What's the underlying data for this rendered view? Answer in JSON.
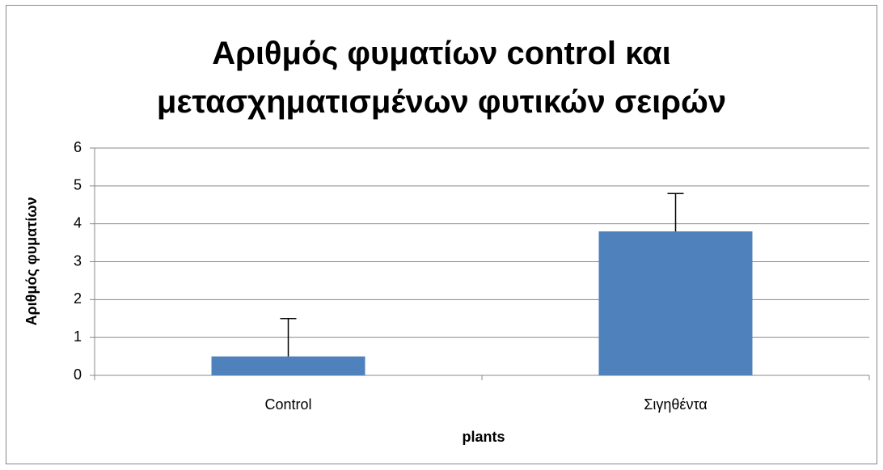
{
  "chart_data": {
    "type": "bar",
    "title": "Αριθμός φυματίων control και μετασχηματισμένων φυτικών σειρών",
    "xlabel": "plants",
    "ylabel": "Αριθμός φυματίων",
    "categories": [
      "Control",
      "Σιγηθέντα"
    ],
    "values": [
      0.5,
      3.8
    ],
    "errors": [
      1,
      1
    ],
    "color": "#4f81bd",
    "ylim": [
      0,
      6
    ],
    "yticks": [
      0,
      1,
      2,
      3,
      4,
      5,
      6
    ],
    "grid": true
  }
}
